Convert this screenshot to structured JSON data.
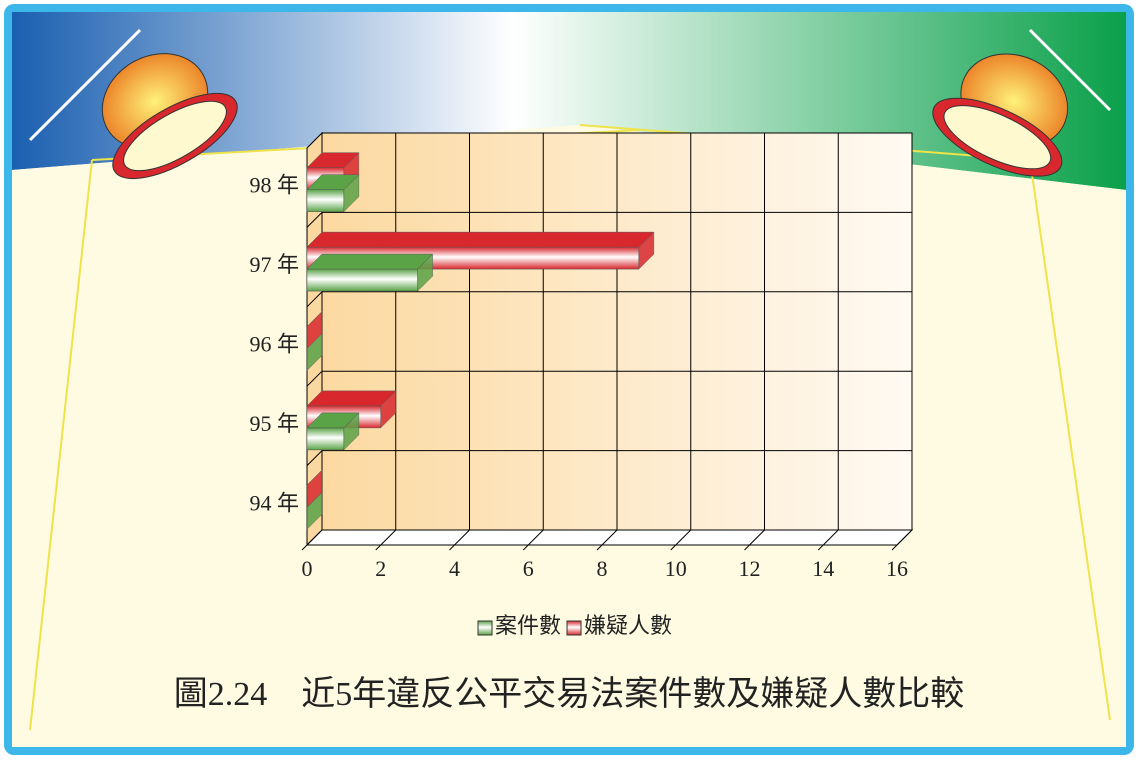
{
  "chart_data": {
    "type": "bar",
    "orientation": "horizontal",
    "title": "圖2.24　近5年違反公平交易法案件數及嫌疑人數比較",
    "categories": [
      "94 年",
      "95 年",
      "96 年",
      "97 年",
      "98 年"
    ],
    "series": [
      {
        "name": "案件數",
        "color": "#5aa347",
        "values": [
          0,
          1,
          0,
          3,
          1
        ]
      },
      {
        "name": "嫌疑人數",
        "color": "#d8282e",
        "values": [
          0,
          2,
          0,
          9,
          1
        ]
      }
    ],
    "xlim": [
      0,
      16
    ],
    "xticks": [
      0,
      2,
      4,
      6,
      8,
      10,
      12,
      14,
      16
    ],
    "grid": true,
    "legend": "bottom"
  }
}
